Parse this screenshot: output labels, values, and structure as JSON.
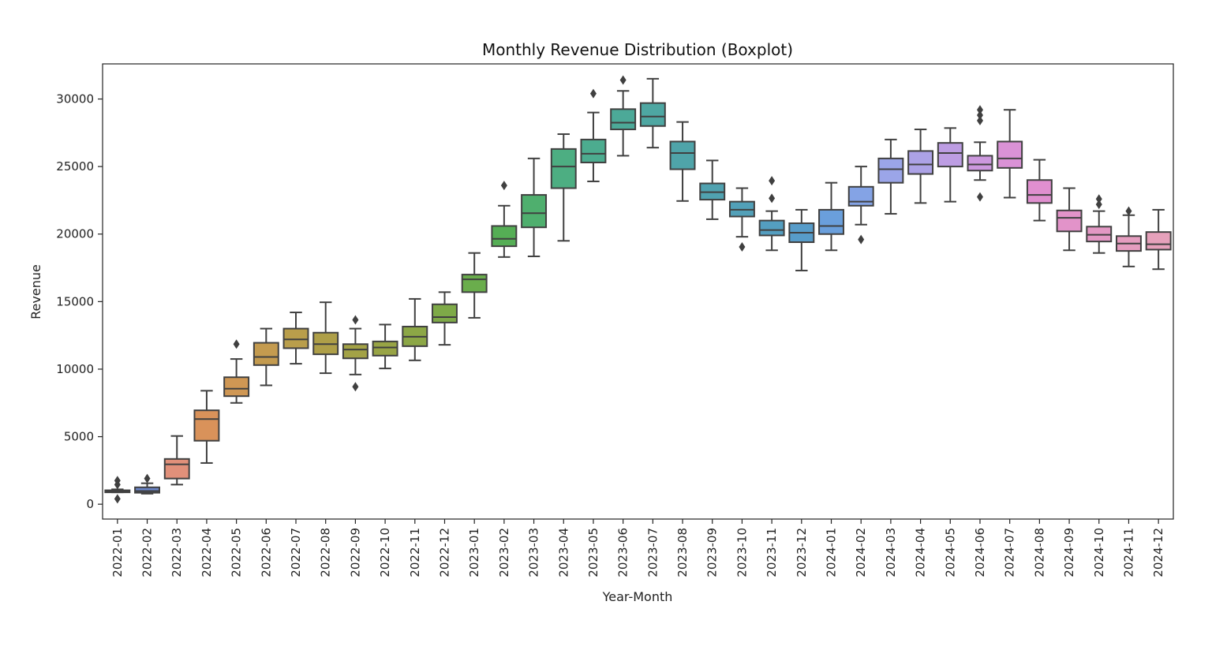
{
  "chart_data": {
    "type": "boxplot",
    "title": "Monthly Revenue Distribution (Boxplot)",
    "xlabel": "Year-Month",
    "ylabel": "Revenue",
    "ylim": [
      -1100,
      32600
    ],
    "yticks": [
      0,
      5000,
      10000,
      15000,
      20000,
      25000,
      30000
    ],
    "grid": false,
    "legend": "none",
    "categories": [
      "2022-01",
      "2022-02",
      "2022-03",
      "2022-04",
      "2022-05",
      "2022-06",
      "2022-07",
      "2022-08",
      "2022-09",
      "2022-10",
      "2022-11",
      "2022-12",
      "2023-01",
      "2023-02",
      "2023-03",
      "2023-04",
      "2023-05",
      "2023-06",
      "2023-07",
      "2023-08",
      "2023-09",
      "2023-10",
      "2023-11",
      "2023-12",
      "2024-01",
      "2024-02",
      "2024-03",
      "2024-04",
      "2024-05",
      "2024-06",
      "2024-07",
      "2024-08",
      "2024-09",
      "2024-10",
      "2024-11",
      "2024-12"
    ],
    "boxes": [
      {
        "whisker_low": 880,
        "q1": 880,
        "median": 950,
        "q3": 1030,
        "whisker_high": 1100,
        "outliers": [
          400,
          1450,
          1750
        ],
        "color": "#4c72b0"
      },
      {
        "whisker_low": 780,
        "q1": 850,
        "median": 970,
        "q3": 1250,
        "whisker_high": 1550,
        "outliers": [
          1900
        ],
        "color": "#6a85c8"
      },
      {
        "whisker_low": 1450,
        "q1": 1900,
        "median": 2950,
        "q3": 3350,
        "whisker_high": 5050,
        "outliers": [],
        "color": "#e1907a"
      },
      {
        "whisker_low": 3050,
        "q1": 4700,
        "median": 6300,
        "q3": 6950,
        "whisker_high": 8400,
        "outliers": [],
        "color": "#d9925a"
      },
      {
        "whisker_low": 7500,
        "q1": 8000,
        "median": 8550,
        "q3": 9400,
        "whisker_high": 10750,
        "outliers": [
          11850
        ],
        "color": "#cf9754"
      },
      {
        "whisker_low": 8800,
        "q1": 10300,
        "median": 10900,
        "q3": 11950,
        "whisker_high": 13000,
        "outliers": [],
        "color": "#c49b4f"
      },
      {
        "whisker_low": 10400,
        "q1": 11550,
        "median": 12200,
        "q3": 13000,
        "whisker_high": 14200,
        "outliers": [],
        "color": "#b99e4b"
      },
      {
        "whisker_low": 9700,
        "q1": 11100,
        "median": 11850,
        "q3": 12700,
        "whisker_high": 14950,
        "outliers": [],
        "color": "#ae9f48"
      },
      {
        "whisker_low": 9600,
        "q1": 10800,
        "median": 11450,
        "q3": 11850,
        "whisker_high": 13000,
        "outliers": [
          8700,
          13650
        ],
        "color": "#a3a246"
      },
      {
        "whisker_low": 10050,
        "q1": 11000,
        "median": 11600,
        "q3": 12050,
        "whisker_high": 13300,
        "outliers": [],
        "color": "#98a445"
      },
      {
        "whisker_low": 10650,
        "q1": 11700,
        "median": 12400,
        "q3": 13150,
        "whisker_high": 15200,
        "outliers": [],
        "color": "#8ca746"
      },
      {
        "whisker_low": 11800,
        "q1": 13450,
        "median": 13850,
        "q3": 14800,
        "whisker_high": 15700,
        "outliers": [],
        "color": "#7eaa48"
      },
      {
        "whisker_low": 13800,
        "q1": 15700,
        "median": 16650,
        "q3": 17000,
        "whisker_high": 18600,
        "outliers": [],
        "color": "#6aad4c"
      },
      {
        "whisker_low": 18300,
        "q1": 19100,
        "median": 19650,
        "q3": 20600,
        "whisker_high": 22100,
        "outliers": [
          23600
        ],
        "color": "#55ae55"
      },
      {
        "whisker_low": 18350,
        "q1": 20500,
        "median": 21550,
        "q3": 22900,
        "whisker_high": 25600,
        "outliers": [],
        "color": "#4faf6e"
      },
      {
        "whisker_low": 19500,
        "q1": 23400,
        "median": 25000,
        "q3": 26300,
        "whisker_high": 27400,
        "outliers": [],
        "color": "#4dae82"
      },
      {
        "whisker_low": 23900,
        "q1": 25300,
        "median": 25950,
        "q3": 27000,
        "whisker_high": 29000,
        "outliers": [
          30400
        ],
        "color": "#4cac8f"
      },
      {
        "whisker_low": 25800,
        "q1": 27750,
        "median": 28250,
        "q3": 29250,
        "whisker_high": 30600,
        "outliers": [
          31400
        ],
        "color": "#4ca998"
      },
      {
        "whisker_low": 26400,
        "q1": 28000,
        "median": 28700,
        "q3": 29700,
        "whisker_high": 31500,
        "outliers": [],
        "color": "#4ea7a2"
      },
      {
        "whisker_low": 22450,
        "q1": 24800,
        "median": 26000,
        "q3": 26850,
        "whisker_high": 28300,
        "outliers": [],
        "color": "#4fa4a9"
      },
      {
        "whisker_low": 21100,
        "q1": 22550,
        "median": 23100,
        "q3": 23750,
        "whisker_high": 25450,
        "outliers": [],
        "color": "#50a2b0"
      },
      {
        "whisker_low": 19800,
        "q1": 21300,
        "median": 21800,
        "q3": 22400,
        "whisker_high": 23400,
        "outliers": [
          19050
        ],
        "color": "#52a0b8"
      },
      {
        "whisker_low": 18800,
        "q1": 19900,
        "median": 20300,
        "q3": 21000,
        "whisker_high": 21700,
        "outliers": [
          22650,
          23950
        ],
        "color": "#549ec0"
      },
      {
        "whisker_low": 17300,
        "q1": 19400,
        "median": 20100,
        "q3": 20800,
        "whisker_high": 21800,
        "outliers": [],
        "color": "#579cc9"
      },
      {
        "whisker_low": 18800,
        "q1": 20000,
        "median": 20600,
        "q3": 21800,
        "whisker_high": 23800,
        "outliers": [],
        "color": "#6a9fdc"
      },
      {
        "whisker_low": 20700,
        "q1": 22100,
        "median": 22400,
        "q3": 23500,
        "whisker_high": 25000,
        "outliers": [
          19600
        ],
        "color": "#84a3e5"
      },
      {
        "whisker_low": 21500,
        "q1": 23800,
        "median": 24800,
        "q3": 25600,
        "whisker_high": 27000,
        "outliers": [],
        "color": "#9ba5e8"
      },
      {
        "whisker_low": 22300,
        "q1": 24450,
        "median": 25150,
        "q3": 26150,
        "whisker_high": 27750,
        "outliers": [],
        "color": "#aca2e6"
      },
      {
        "whisker_low": 22400,
        "q1": 25000,
        "median": 26000,
        "q3": 26750,
        "whisker_high": 27850,
        "outliers": [],
        "color": "#bd9de3"
      },
      {
        "whisker_low": 24000,
        "q1": 24700,
        "median": 25150,
        "q3": 25800,
        "whisker_high": 26800,
        "outliers": [
          22750,
          28400,
          28800,
          29200
        ],
        "color": "#cc98de"
      },
      {
        "whisker_low": 22700,
        "q1": 24900,
        "median": 25600,
        "q3": 26850,
        "whisker_high": 29200,
        "outliers": [],
        "color": "#da92d6"
      },
      {
        "whisker_low": 21000,
        "q1": 22300,
        "median": 22900,
        "q3": 24000,
        "whisker_high": 25500,
        "outliers": [],
        "color": "#e08fcf"
      },
      {
        "whisker_low": 18800,
        "q1": 20200,
        "median": 21200,
        "q3": 21750,
        "whisker_high": 23400,
        "outliers": [],
        "color": "#e293c9"
      },
      {
        "whisker_low": 18600,
        "q1": 19450,
        "median": 19950,
        "q3": 20550,
        "whisker_high": 21700,
        "outliers": [
          22200,
          22600
        ],
        "color": "#e398c4"
      },
      {
        "whisker_low": 17600,
        "q1": 18750,
        "median": 19300,
        "q3": 19850,
        "whisker_high": 21400,
        "outliers": [
          21700
        ],
        "color": "#e59dbf"
      },
      {
        "whisker_low": 17400,
        "q1": 18850,
        "median": 19250,
        "q3": 20150,
        "whisker_high": 21800,
        "outliers": [],
        "color": "#e6a1bb"
      }
    ]
  }
}
